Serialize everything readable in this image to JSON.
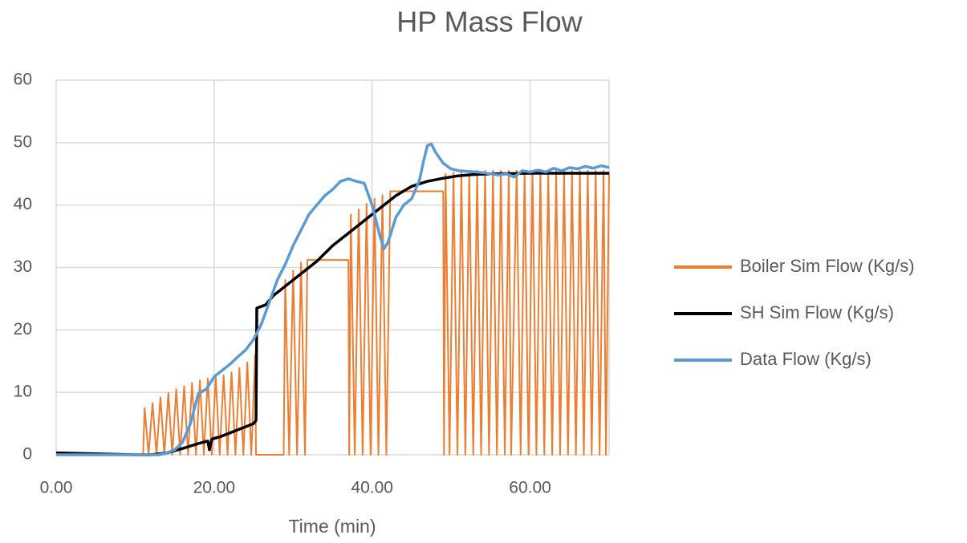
{
  "chart_data": {
    "type": "line",
    "title": "HP Mass Flow",
    "x_label": "Time (min)",
    "xlim": [
      0,
      70
    ],
    "ylim": [
      0,
      60
    ],
    "xticks": [
      {
        "value": 0,
        "label": "0.00"
      },
      {
        "value": 20,
        "label": "20.00"
      },
      {
        "value": 40,
        "label": "40.00"
      },
      {
        "value": 60,
        "label": "60.00"
      }
    ],
    "yticks": [
      0,
      10,
      20,
      30,
      40,
      50,
      60
    ],
    "grid": true,
    "legend": "right",
    "series": [
      {
        "name": "Boiler Sim Flow (Kg/s)",
        "color": "#ED7D31",
        "x": [
          0,
          11.0,
          11.2,
          11.7,
          12.2,
          12.7,
          13.2,
          13.7,
          14.2,
          14.7,
          15.2,
          15.7,
          16.2,
          16.7,
          17.2,
          17.7,
          18.2,
          18.7,
          19.2,
          19.7,
          20.2,
          20.7,
          21.2,
          21.7,
          22.2,
          22.7,
          23.2,
          23.7,
          24.2,
          24.7,
          25.2,
          25.3,
          28.8,
          29.0,
          29.5,
          30.0,
          30.5,
          31.0,
          31.5,
          31.8,
          37.0,
          37.1,
          37.3,
          37.8,
          38.3,
          38.8,
          39.3,
          39.8,
          40.3,
          40.8,
          41.3,
          41.8,
          42.3,
          42.6,
          49.0,
          49.1,
          49.3,
          49.8,
          50.3,
          50.8,
          51.3,
          51.8,
          52.3,
          52.8,
          53.3,
          53.8,
          54.3,
          54.8,
          55.3,
          55.8,
          56.3,
          56.8,
          57.3,
          57.6,
          58.3,
          58.8,
          59.3,
          59.8,
          60.3,
          60.8,
          61.3,
          61.8,
          62.3,
          62.8,
          63.3,
          63.8,
          64.3,
          64.8,
          65.3,
          65.8,
          66.3,
          66.8,
          67.3,
          67.8,
          68.3,
          68.8,
          69.3,
          69.6,
          70
        ],
        "values": [
          0,
          0,
          7.5,
          0,
          8.3,
          0,
          9.2,
          0,
          9.9,
          0,
          10.5,
          0,
          11,
          0,
          11.5,
          0,
          11.9,
          0,
          12.2,
          0,
          12.4,
          0,
          12.7,
          0,
          13.2,
          0,
          13.9,
          0,
          14.8,
          0,
          16,
          0,
          0,
          28,
          0,
          29.5,
          0,
          30.8,
          0,
          31.2,
          31.2,
          0,
          38.5,
          0,
          39.3,
          0,
          40.2,
          0,
          41,
          0,
          41.6,
          0,
          42.2,
          42.2,
          42.2,
          0,
          45,
          0,
          45.2,
          0,
          45.3,
          0,
          45.4,
          0,
          45.5,
          0,
          45.5,
          0,
          45.5,
          0,
          45.5,
          0,
          45.5,
          0,
          45.5,
          0,
          45.5,
          0,
          45.5,
          0,
          45.5,
          0,
          45.5,
          0,
          45.5,
          0,
          45.5,
          0,
          45.5,
          0,
          45.5,
          0,
          45.5,
          0,
          45.5,
          0,
          45.5,
          0,
          45.3
        ]
      },
      {
        "name": "SH Sim Flow (Kg/s)",
        "color": "#000000",
        "x": [
          0,
          10,
          12,
          14,
          16,
          18,
          19.2,
          19.4,
          19.7,
          21,
          23,
          25,
          25.3,
          25.4,
          26.5,
          27.5,
          29,
          31,
          33,
          35,
          37,
          39,
          41,
          43,
          45,
          47,
          49,
          51,
          53,
          55,
          60,
          70
        ],
        "values": [
          0.3,
          0,
          0,
          0.3,
          1,
          1.8,
          2.2,
          0.8,
          2.5,
          3,
          4,
          5,
          5.5,
          23.5,
          24,
          25.5,
          27,
          29,
          31,
          33.5,
          35.5,
          37.5,
          39.5,
          41.5,
          43,
          43.8,
          44.3,
          44.7,
          44.9,
          45,
          45.1,
          45.1
        ]
      },
      {
        "name": "Data Flow (Kg/s)",
        "color": "#5B9BD5",
        "x": [
          0,
          10,
          13,
          14,
          15,
          16,
          17,
          18,
          19,
          20,
          21,
          22,
          23,
          24,
          25,
          26,
          27,
          28,
          29,
          30,
          31,
          32,
          33,
          34,
          35,
          36,
          37,
          38,
          39,
          40,
          41,
          41.5,
          42,
          43,
          44,
          45,
          46,
          46.5,
          47,
          47.5,
          48,
          49,
          50,
          51,
          52,
          53,
          54,
          55,
          56,
          57,
          58,
          59,
          60,
          61,
          62,
          63,
          64,
          65,
          66,
          67,
          68,
          69,
          70
        ],
        "values": [
          0,
          0,
          0,
          0.3,
          0.8,
          2,
          5,
          9.8,
          10.5,
          12.5,
          13.5,
          14.5,
          15.7,
          16.8,
          18.5,
          21,
          24.5,
          28,
          30.5,
          33.5,
          36,
          38.5,
          40,
          41.5,
          42.5,
          43.8,
          44.2,
          43.8,
          43.5,
          40,
          35,
          33,
          34,
          38,
          40,
          41,
          44,
          47,
          49.5,
          49.8,
          48.5,
          46.7,
          45.8,
          45.5,
          45.4,
          45.3,
          45.2,
          45,
          44.8,
          45,
          44.5,
          45.5,
          45.3,
          45.6,
          45.3,
          45.9,
          45.5,
          46,
          45.8,
          46.2,
          45.9,
          46.3,
          46
        ]
      }
    ]
  }
}
